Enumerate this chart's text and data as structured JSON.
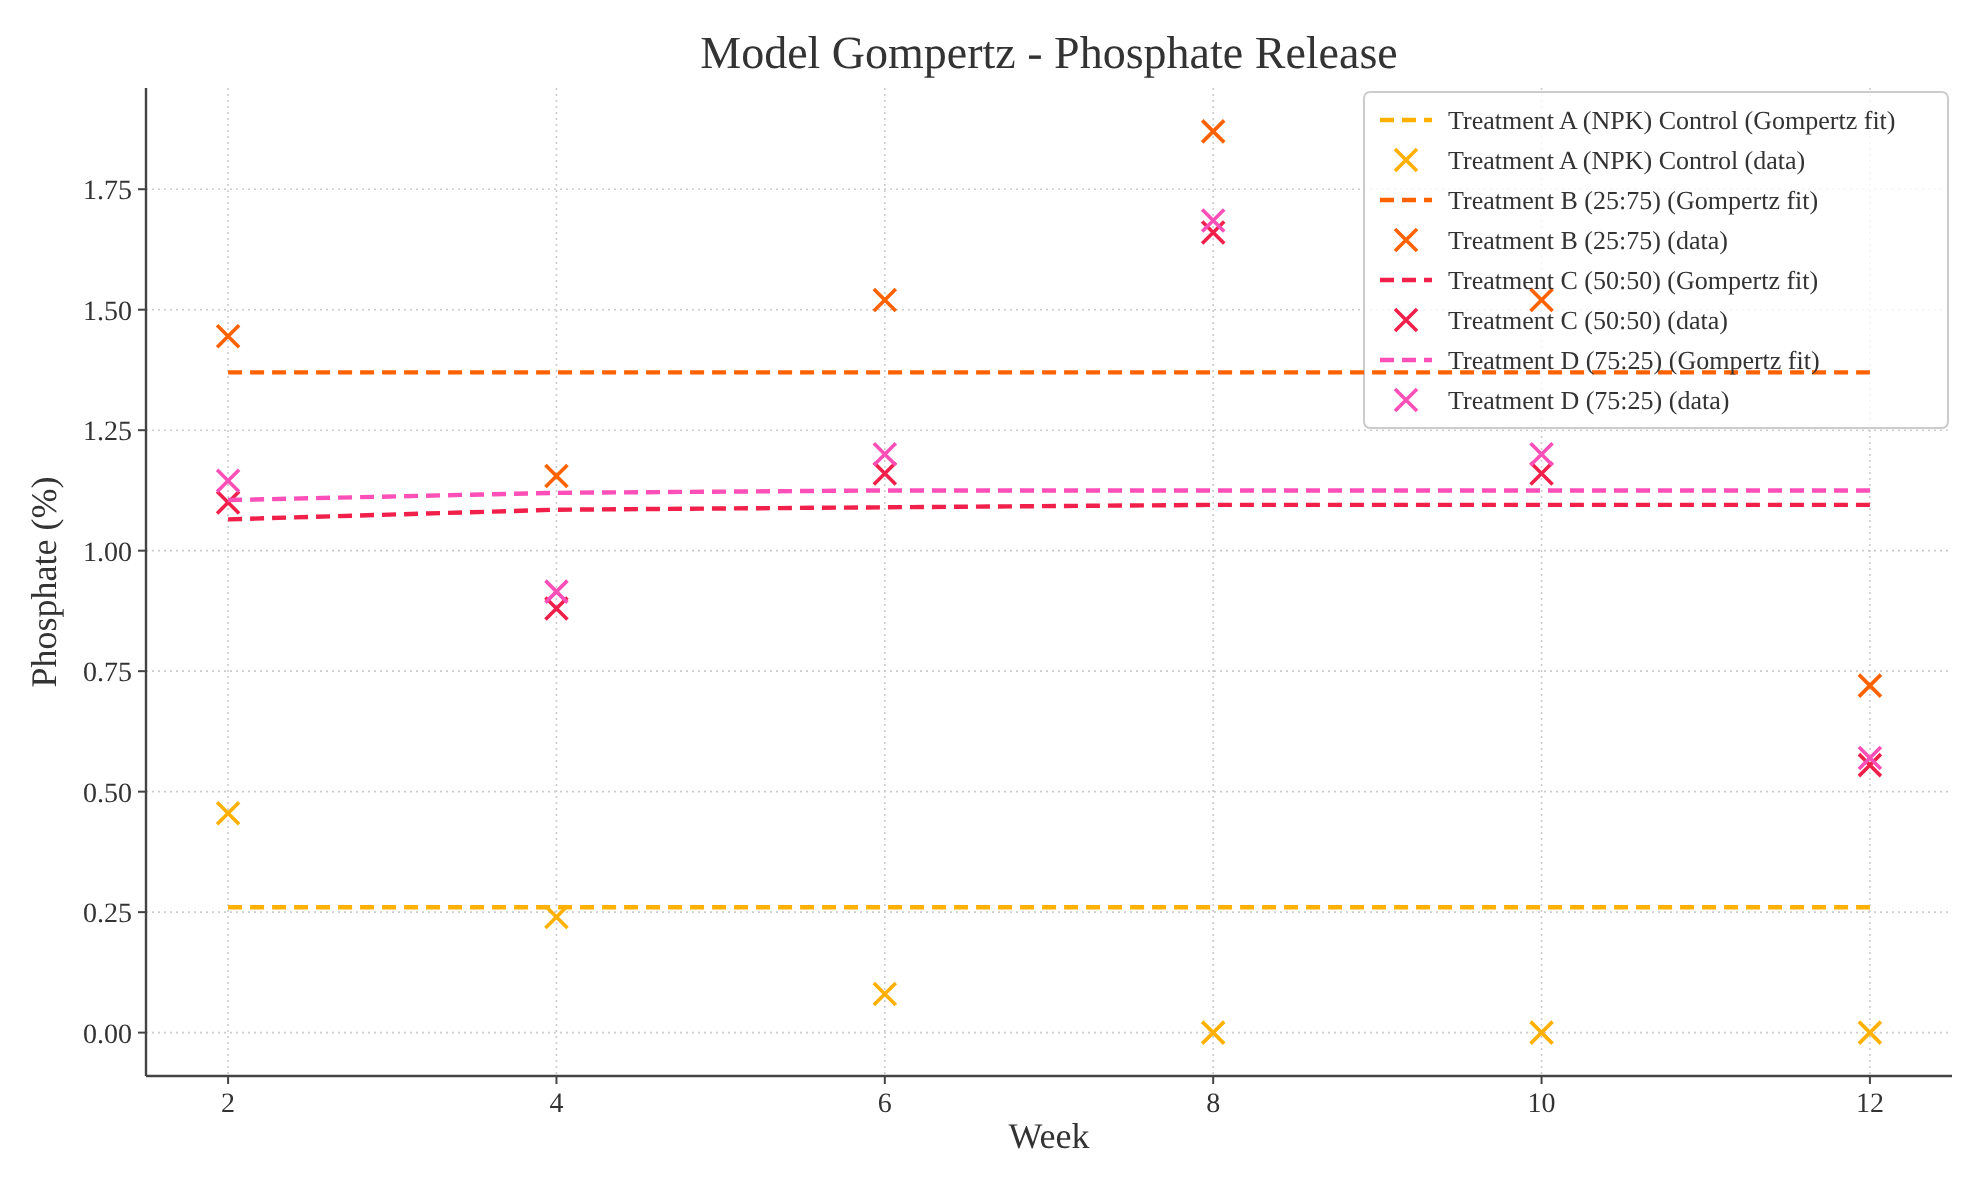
{
  "chart_data": {
    "type": "scatter",
    "title": "Model Gompertz - Phosphate Release",
    "xlabel": "Week",
    "ylabel": "Phosphate (%)",
    "x": [
      2,
      4,
      6,
      8,
      10,
      12
    ],
    "xlim": [
      1.5,
      12.5
    ],
    "xticks": [
      2,
      4,
      6,
      8,
      10,
      12
    ],
    "ylim": [
      -0.09,
      1.96
    ],
    "yticks": [
      {
        "value": 0,
        "label": "0.00"
      },
      {
        "value": 0.25,
        "label": "0.25"
      },
      {
        "value": 0.5,
        "label": "0.50"
      },
      {
        "value": 0.75,
        "label": "0.75"
      },
      {
        "value": 1,
        "label": "1.00"
      },
      {
        "value": 1.25,
        "label": "1.25"
      },
      {
        "value": 1.5,
        "label": "1.50"
      },
      {
        "value": 1.75,
        "label": "1.75"
      }
    ],
    "grid": true,
    "legend": "top right",
    "series": [
      {
        "name": "Treatment A (NPK) Control (Gompertz fit)",
        "type": "line",
        "line_style": "dashed",
        "color": "#ffb000",
        "values": [
          0.26,
          0.26,
          0.26,
          0.26,
          0.26,
          0.26
        ]
      },
      {
        "name": "Treatment A (NPK) Control (data)",
        "marker": "cross",
        "color": "#ffb000",
        "values": [
          0.455,
          0.24,
          0.08,
          0,
          0,
          0
        ]
      },
      {
        "name": "Treatment B (25:75) (Gompertz fit)",
        "type": "line",
        "line_style": "dashed",
        "color": "#fe6100",
        "values": [
          1.37,
          1.37,
          1.37,
          1.37,
          1.37,
          1.37
        ]
      },
      {
        "name": "Treatment B (25:75) (data)",
        "marker": "cross",
        "color": "#fe6100",
        "values": [
          1.445,
          1.155,
          1.52,
          1.87,
          1.52,
          0.72
        ]
      },
      {
        "name": "Treatment C (50:50) (Gompertz fit)",
        "type": "line",
        "line_style": "dashed",
        "color": "#f0204a",
        "values": [
          1.065,
          1.085,
          1.09,
          1.095,
          1.095,
          1.095
        ]
      },
      {
        "name": "Treatment C (50:50) (data)",
        "marker": "cross",
        "color": "#f0204a",
        "values": [
          1.1,
          0.88,
          1.16,
          1.66,
          1.16,
          0.555
        ]
      },
      {
        "name": "Treatment D (75:25) (Gompertz fit)",
        "type": "line",
        "line_style": "dashed",
        "color": "#fc4fb8",
        "values": [
          1.105,
          1.12,
          1.125,
          1.125,
          1.125,
          1.125
        ]
      },
      {
        "name": "Treatment D (75:25) (data)",
        "marker": "cross",
        "color": "#fc4fb8",
        "values": [
          1.145,
          0.915,
          1.2,
          1.685,
          1.2,
          0.57
        ]
      }
    ]
  }
}
